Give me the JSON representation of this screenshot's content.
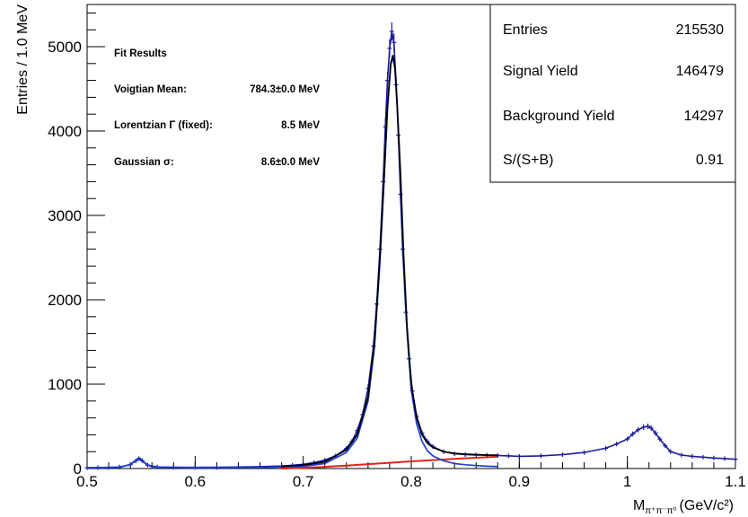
{
  "chart_data": {
    "type": "line",
    "title": "",
    "xlabel": "M",
    "xlabel_sub": "π⁺π⁻π⁰",
    "xlabel_unit": "(GeV/c²)",
    "ylabel": "Entries / 1.0 MeV",
    "xlim": [
      0.5,
      1.1
    ],
    "ylim": [
      0,
      5500
    ],
    "x_ticks": [
      0.5,
      0.6,
      0.7,
      0.8,
      0.9,
      1.0,
      1.1
    ],
    "x_tick_labels": [
      "0.5",
      "0.6",
      "0.7",
      "0.8",
      "0.9",
      "1",
      "1.1"
    ],
    "y_ticks": [
      0,
      1000,
      2000,
      3000,
      4000,
      5000
    ],
    "y_tick_labels": [
      "0",
      "1000",
      "2000",
      "3000",
      "4000",
      "5000"
    ],
    "grid": false,
    "series": [
      {
        "role": "data",
        "color": "#1a1a9c",
        "x": [
          0.5,
          0.51,
          0.52,
          0.53,
          0.54,
          0.545,
          0.548,
          0.551,
          0.556,
          0.565,
          0.58,
          0.6,
          0.62,
          0.64,
          0.66,
          0.68,
          0.69,
          0.7,
          0.71,
          0.72,
          0.73,
          0.74,
          0.745,
          0.75,
          0.755,
          0.76,
          0.765,
          0.768,
          0.771,
          0.774,
          0.776,
          0.778,
          0.78,
          0.782,
          0.784,
          0.786,
          0.788,
          0.79,
          0.792,
          0.795,
          0.798,
          0.801,
          0.805,
          0.81,
          0.815,
          0.82,
          0.83,
          0.84,
          0.85,
          0.86,
          0.87,
          0.88,
          0.89,
          0.9,
          0.92,
          0.94,
          0.96,
          0.98,
          0.99,
          1.0,
          1.005,
          1.01,
          1.015,
          1.019,
          1.022,
          1.026,
          1.03,
          1.035,
          1.04,
          1.05,
          1.06,
          1.07,
          1.08,
          1.09,
          1.1
        ],
        "y": [
          10,
          12,
          14,
          18,
          45,
          90,
          120,
          95,
          40,
          18,
          15,
          14,
          15,
          18,
          22,
          30,
          38,
          50,
          70,
          100,
          150,
          240,
          320,
          450,
          640,
          950,
          1450,
          1950,
          2600,
          3400,
          4050,
          4600,
          4980,
          5180,
          5050,
          4550,
          3950,
          3250,
          2600,
          1850,
          1300,
          920,
          620,
          420,
          320,
          260,
          200,
          175,
          165,
          160,
          158,
          155,
          150,
          145,
          150,
          165,
          190,
          240,
          290,
          350,
          410,
          460,
          490,
          500,
          480,
          420,
          350,
          270,
          200,
          160,
          145,
          135,
          125,
          118,
          110
        ]
      },
      {
        "role": "total-fit",
        "color": "#000000",
        "x": [
          0.68,
          0.7,
          0.72,
          0.74,
          0.75,
          0.76,
          0.766,
          0.771,
          0.775,
          0.778,
          0.781,
          0.783,
          0.785,
          0.787,
          0.79,
          0.793,
          0.796,
          0.8,
          0.805,
          0.81,
          0.815,
          0.82,
          0.83,
          0.84,
          0.85,
          0.86,
          0.87,
          0.88
        ],
        "y": [
          25,
          40,
          80,
          220,
          400,
          850,
          1500,
          2500,
          3500,
          4300,
          4800,
          4900,
          4750,
          4300,
          3500,
          2500,
          1700,
          1000,
          600,
          400,
          300,
          250,
          200,
          180,
          170,
          165,
          160,
          158
        ]
      },
      {
        "role": "signal-fit",
        "color": "#1f3fd6",
        "x": [
          0.5,
          0.53,
          0.54,
          0.545,
          0.548,
          0.552,
          0.56,
          0.6,
          0.66,
          0.7,
          0.72,
          0.74,
          0.75,
          0.76,
          0.766,
          0.771,
          0.775,
          0.778,
          0.781,
          0.783,
          0.785,
          0.787,
          0.79,
          0.793,
          0.796,
          0.8,
          0.805,
          0.81,
          0.815,
          0.82,
          0.83,
          0.84,
          0.85,
          0.86,
          0.87,
          0.88
        ],
        "y": [
          8,
          12,
          50,
          95,
          110,
          75,
          18,
          10,
          12,
          25,
          60,
          190,
          360,
          800,
          1450,
          2450,
          3450,
          4250,
          4780,
          4880,
          4730,
          4270,
          3450,
          2430,
          1630,
          930,
          530,
          320,
          210,
          150,
          90,
          60,
          45,
          35,
          28,
          22
        ]
      },
      {
        "role": "background-fit",
        "color": "#e0241b",
        "x": [
          0.68,
          0.7,
          0.72,
          0.74,
          0.76,
          0.78,
          0.8,
          0.82,
          0.84,
          0.86,
          0.88
        ],
        "y": [
          0,
          8,
          20,
          35,
          52,
          68,
          85,
          100,
          115,
          128,
          140
        ]
      }
    ],
    "fit_results": {
      "heading": "Fit Results",
      "rows": [
        {
          "label": "Voigtian Mean:",
          "value": "784.3±0.0 MeV"
        },
        {
          "label": "Lorentzian Γ (fixed):",
          "value": "8.5 MeV"
        },
        {
          "label": "Gaussian σ:",
          "value": "8.6±0.0 MeV"
        }
      ]
    },
    "stats_box": [
      {
        "label": "Entries",
        "value": "215530"
      },
      {
        "label": "Signal Yield",
        "value": "146479"
      },
      {
        "label": "Background Yield",
        "value": "14297"
      },
      {
        "label": "S/(S+B)",
        "value": "0.91"
      }
    ]
  }
}
